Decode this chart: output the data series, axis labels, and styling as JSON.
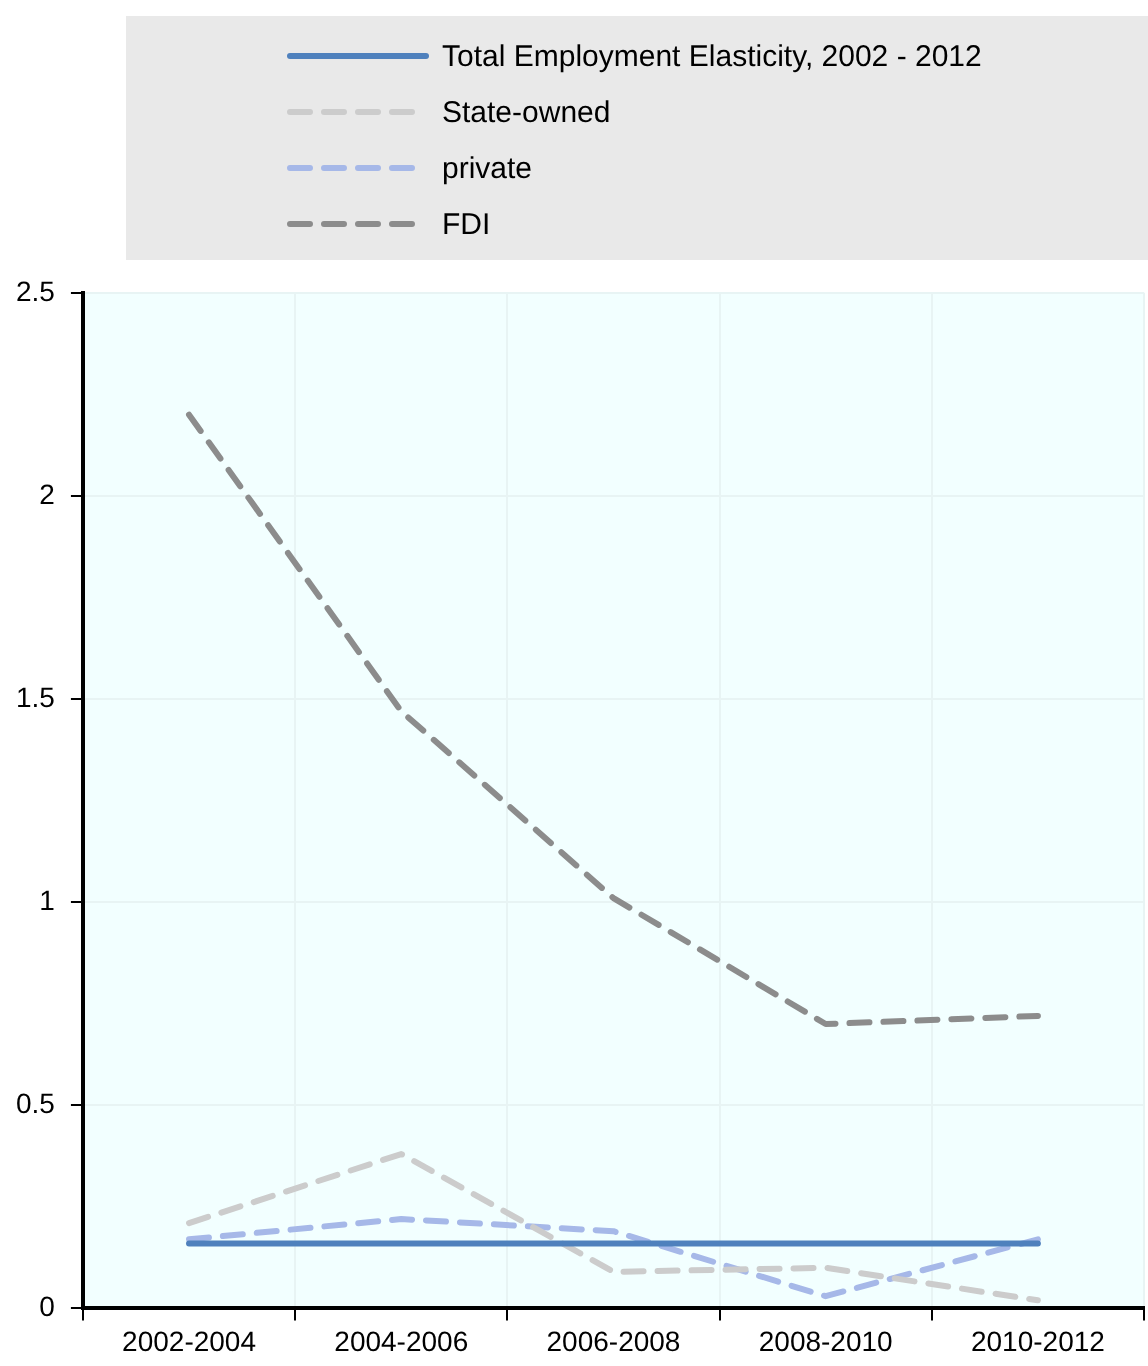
{
  "chart_data": {
    "type": "line",
    "categories": [
      "2002-2004",
      "2004-2006",
      "2006-2008",
      "2008-2010",
      "2010-2012"
    ],
    "series": [
      {
        "name": "Total Employment Elasticity, 2002 - 2012",
        "color": "#4f81bd",
        "line_style": "solid",
        "values": [
          0.16,
          0.16,
          0.16,
          0.16,
          0.16
        ]
      },
      {
        "name": "State-owned",
        "color": "#cccccc",
        "line_style": "dashed",
        "values": [
          0.21,
          0.38,
          0.09,
          0.1,
          0.02
        ]
      },
      {
        "name": "private",
        "color": "#a6b8e8",
        "line_style": "dashed",
        "values": [
          0.17,
          0.22,
          0.19,
          0.03,
          0.17
        ]
      },
      {
        "name": "FDI",
        "color": "#8c8c8c",
        "line_style": "dashed",
        "values": [
          2.2,
          1.47,
          1.01,
          0.7,
          0.72
        ]
      }
    ],
    "ylim": [
      0,
      2.5
    ],
    "yticks": [
      0,
      0.5,
      1,
      1.5,
      2,
      2.5
    ],
    "grid": true,
    "legend": "top",
    "marker": "none"
  }
}
